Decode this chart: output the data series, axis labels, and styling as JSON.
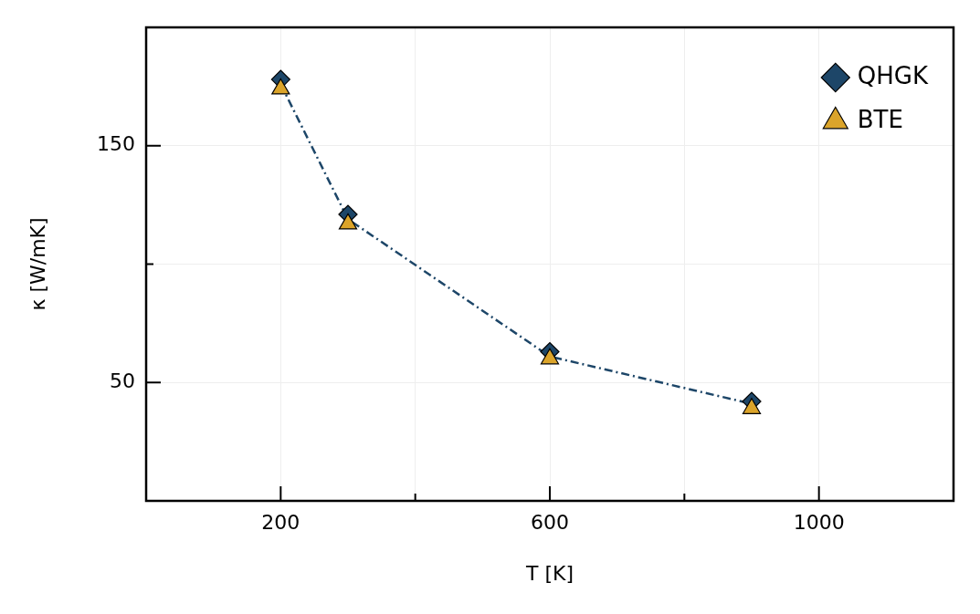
{
  "chart_data": {
    "type": "scatter",
    "xlabel": "T [K]",
    "ylabel": "κ [W/mK]",
    "x": [
      200,
      300,
      600,
      900
    ],
    "series": [
      {
        "type": "line",
        "color": "#1d4668",
        "values": [
          176,
          119,
          61,
          41
        ],
        "line_style": "dashed",
        "marker": "none"
      },
      {
        "name": "QHGK",
        "color": "#1d4668",
        "values": [
          178,
          121,
          63,
          42
        ],
        "marker": "diamond"
      },
      {
        "name": "BTE",
        "color": "#dba42a",
        "values": [
          174,
          117,
          60,
          39
        ],
        "marker": "triangle"
      }
    ],
    "xlim": [
      0,
      1200
    ],
    "xticks": [
      200,
      {
        "value": 400,
        "label": null
      },
      600,
      {
        "value": 800,
        "label": null
      },
      1000
    ],
    "ylim": [
      0,
      200
    ],
    "yticks": [
      50,
      {
        "value": 100,
        "label": null
      },
      150
    ],
    "grid": true,
    "legend": "top right"
  }
}
